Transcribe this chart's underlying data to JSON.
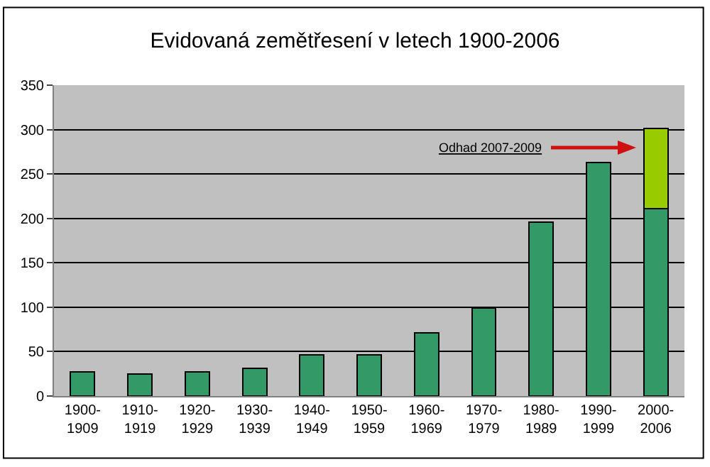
{
  "chart_data": {
    "type": "bar",
    "title": "Evidovaná zemětřesení v letech 1900-2006",
    "categories": [
      "1900-1909",
      "1910-1919",
      "1920-1929",
      "1930-1939",
      "1940-1949",
      "1950-1959",
      "1960-1969",
      "1970-1979",
      "1980-1989",
      "1990-1999",
      "2000-2006"
    ],
    "stacked": true,
    "series": [
      {
        "color": "#339966",
        "values": [
          27,
          25,
          27,
          31,
          46,
          46,
          71,
          99,
          196,
          263,
          211
        ]
      },
      {
        "color": "#99cc00",
        "values": [
          null,
          null,
          null,
          null,
          null,
          null,
          null,
          null,
          null,
          null,
          90
        ]
      }
    ],
    "ylim": [
      0,
      350
    ],
    "yticks": [
      0,
      50,
      100,
      150,
      200,
      250,
      300,
      350
    ],
    "grid": "y",
    "annotations": [
      "Odhad 2007-2009"
    ]
  }
}
